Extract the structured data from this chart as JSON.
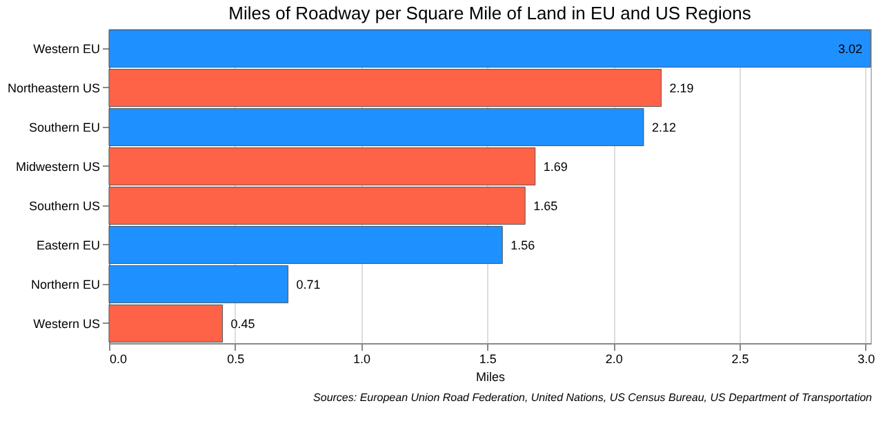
{
  "chart_data": {
    "type": "bar",
    "orientation": "horizontal",
    "title": "Miles of Roadway per Square Mile of Land in EU and US Regions",
    "xlabel": "Miles",
    "categories": [
      "Western EU",
      "Northeastern US",
      "Southern EU",
      "Midwestern US",
      "Southern US",
      "Eastern EU",
      "Northern EU",
      "Western US"
    ],
    "values": [
      3.02,
      2.19,
      2.12,
      1.69,
      1.65,
      1.56,
      0.71,
      0.45
    ],
    "colors": [
      "#1e90ff",
      "#ff6347",
      "#1e90ff",
      "#ff6347",
      "#ff6347",
      "#1e90ff",
      "#1e90ff",
      "#ff6347"
    ],
    "xlim": [
      0,
      3.02
    ],
    "xticks": [
      {
        "value": 0,
        "label": "0.0"
      },
      0.5,
      {
        "value": 1,
        "label": "1.0"
      },
      1.5,
      {
        "value": 2,
        "label": "2.0"
      },
      2.5,
      {
        "value": 3,
        "label": "3.0"
      }
    ],
    "data_labels": true,
    "grid": "x",
    "annotations": [
      "Sources: European Union Road Federation, United Nations, US Census Bureau, US Department of Transportation"
    ]
  }
}
